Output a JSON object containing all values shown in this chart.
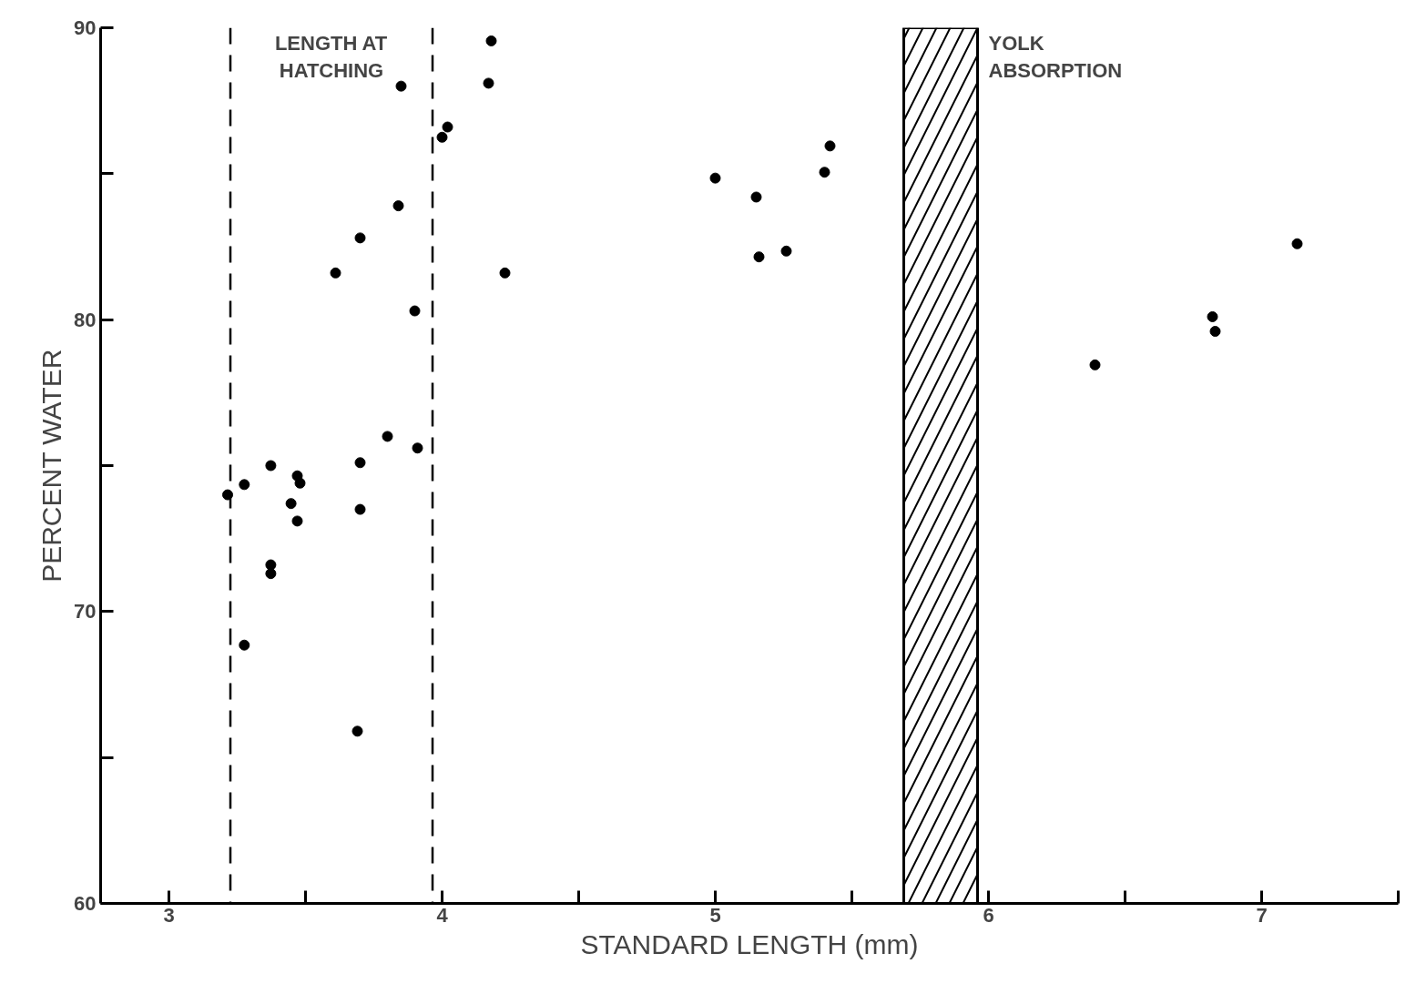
{
  "chart_data": {
    "type": "scatter",
    "xlabel": "STANDARD LENGTH (mm)",
    "ylabel": "PERCENT WATER",
    "x": [
      3.215,
      3.276,
      3.276,
      3.373,
      3.373,
      3.373,
      3.447,
      3.47,
      3.48,
      3.47,
      3.61,
      3.7,
      3.7,
      3.7,
      3.69,
      3.8,
      3.84,
      3.85,
      3.9,
      3.91,
      4.0,
      4.02,
      4.17,
      4.18,
      4.23,
      5.0,
      5.15,
      5.16,
      5.26,
      5.4,
      5.42,
      6.39,
      6.82,
      6.83,
      7.13
    ],
    "values": [
      74.0,
      74.35,
      68.85,
      75.0,
      71.6,
      71.3,
      73.7,
      74.65,
      74.4,
      73.1,
      81.6,
      82.8,
      75.1,
      73.5,
      65.9,
      76.0,
      83.9,
      88.0,
      80.3,
      75.6,
      86.25,
      86.6,
      88.1,
      89.55,
      81.6,
      84.85,
      84.2,
      82.15,
      82.35,
      85.05,
      85.95,
      78.45,
      80.1,
      79.6,
      82.6
    ],
    "color": "#000000",
    "marker": "circle",
    "xlim": [
      2.75,
      7.5
    ],
    "xticks": [
      3,
      {
        "value": 3.5,
        "label": null
      },
      4,
      {
        "value": 4.5,
        "label": null
      },
      5,
      {
        "value": 5.5,
        "label": null
      },
      6,
      {
        "value": 6.5,
        "label": null
      },
      7,
      {
        "value": 7.5,
        "label": null
      }
    ],
    "ylim": [
      60,
      90
    ],
    "yticks": [
      60,
      {
        "value": 65,
        "label": null
      },
      70,
      {
        "value": 75,
        "label": null
      },
      80,
      {
        "value": 85,
        "label": null
      },
      90
    ],
    "ref_lines": [
      {
        "axis": "x",
        "value": 3.225,
        "line_style": "dashed"
      },
      {
        "axis": "x",
        "value": 3.965,
        "line_style": "dashed"
      }
    ],
    "bands": [
      {
        "axis": "x",
        "from": 5.69,
        "to": 5.96,
        "label": "YOLK ABSORPTION",
        "color": "#000000"
      }
    ],
    "annotations": [
      "LENGTH AT HATCHING"
    ]
  }
}
